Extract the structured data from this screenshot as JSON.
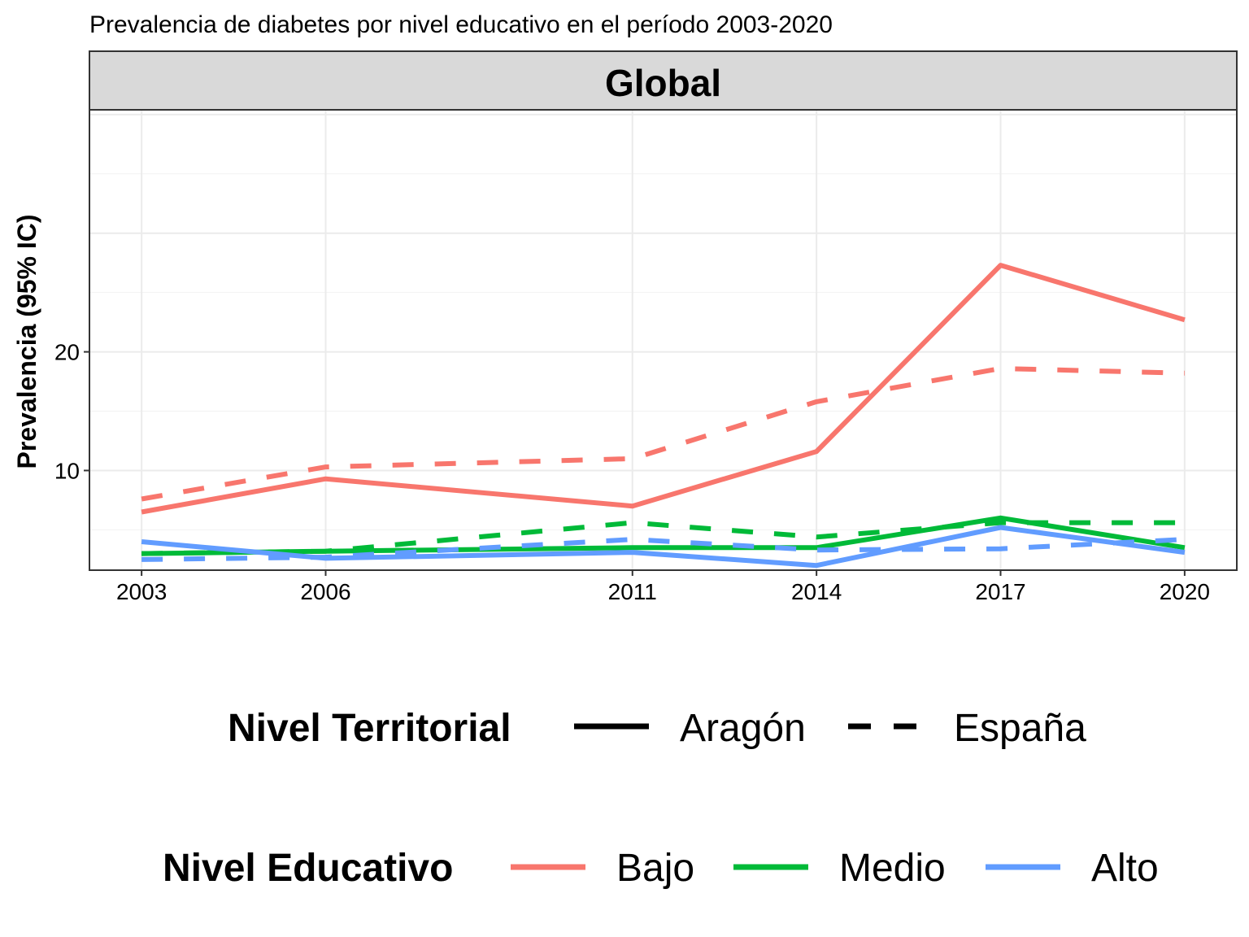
{
  "chart_data": {
    "type": "line",
    "title": "Prevalencia de diabetes por nivel educativo en el período 2003-2020",
    "facet": "Global",
    "ylabel": "Prevalencia (95% IC)",
    "xlabel": "",
    "x": [
      2003,
      2006,
      2011,
      2014,
      2017,
      2020
    ],
    "x_ticks": [
      "2003",
      "2006",
      "2011",
      "2014",
      "2017",
      "2020"
    ],
    "y_ticks": [
      "10",
      "20"
    ],
    "y_tick_values": [
      10,
      20
    ],
    "xlim": [
      2002.15,
      2020.85
    ],
    "ylim": [
      1.6,
      40.4
    ],
    "grid": true,
    "series": [
      {
        "nivel": "Bajo",
        "territorio": "Aragón",
        "color": "#F8766D",
        "dash": "solid",
        "values": [
          6.5,
          9.3,
          7.0,
          11.6,
          27.3,
          22.7
        ]
      },
      {
        "nivel": "Bajo",
        "territorio": "España",
        "color": "#F8766D",
        "dash": "dashed",
        "values": [
          7.6,
          10.3,
          11.0,
          15.8,
          18.6,
          18.2
        ]
      },
      {
        "nivel": "Medio",
        "territorio": "Aragón",
        "color": "#00BA38",
        "dash": "solid",
        "values": [
          3.0,
          3.2,
          3.5,
          3.5,
          6.0,
          3.5
        ]
      },
      {
        "nivel": "Medio",
        "territorio": "España",
        "color": "#00BA38",
        "dash": "dashed",
        "values": [
          3.0,
          3.2,
          5.6,
          4.4,
          5.6,
          5.6
        ]
      },
      {
        "nivel": "Alto",
        "territorio": "Aragón",
        "color": "#619CFF",
        "dash": "solid",
        "values": [
          4.0,
          2.6,
          3.1,
          2.0,
          5.2,
          3.1
        ]
      },
      {
        "nivel": "Alto",
        "territorio": "España",
        "color": "#619CFF",
        "dash": "dashed",
        "values": [
          2.5,
          2.7,
          4.2,
          3.3,
          3.4,
          4.2
        ]
      }
    ],
    "legend": {
      "placement": "bottom",
      "territorial": {
        "title": "Nivel Territorial",
        "entries": [
          {
            "label": "Aragón",
            "dash": "solid"
          },
          {
            "label": "España",
            "dash": "dashed"
          }
        ]
      },
      "educativo": {
        "title": "Nivel Educativo",
        "entries": [
          {
            "label": "Bajo",
            "color": "#F8766D"
          },
          {
            "label": "Medio",
            "color": "#00BA38"
          },
          {
            "label": "Alto",
            "color": "#619CFF"
          }
        ]
      }
    }
  }
}
